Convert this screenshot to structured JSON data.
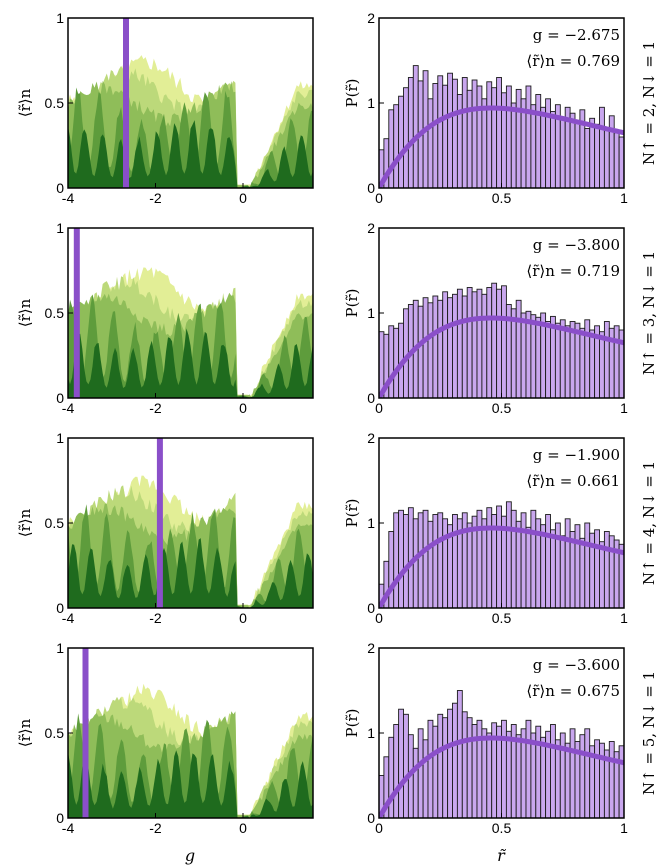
{
  "figure": {
    "x_axis_label_left": "g",
    "x_axis_label_right": "r̃"
  },
  "colors": {
    "frame": "#000000",
    "marker_line": "#8a4fc9",
    "histogram_fill": "#c9a7ee",
    "histogram_edge": "#1a1a1a",
    "reference_curve": "#8a4fc9",
    "layer_1": "#e2ee96",
    "layer_2": "#bcd97a",
    "layer_3": "#8fbd59",
    "layer_4": "#5e9c3c",
    "layer_5": "#1f6b1e"
  },
  "chart_data": [
    {
      "type": "area",
      "panel": "row1-left",
      "ylabel": "⟨r̃⟩n",
      "xlim": [
        -4,
        1.6
      ],
      "ylim": [
        0,
        1
      ],
      "xticks": [
        "-4",
        "-2",
        "0"
      ],
      "yticks": [
        "0",
        "0.5",
        "1"
      ],
      "marker_g": -2.675
    },
    {
      "type": "bar",
      "panel": "row1-right",
      "ylabel": "P(r̃)",
      "xlim": [
        0,
        1
      ],
      "ylim": [
        0,
        2
      ],
      "xticks": [
        "0",
        "0.5",
        "1"
      ],
      "yticks": [
        "0",
        "1",
        "2"
      ],
      "g_text": "g = −2.675",
      "r_text": "⟨r̃⟩n = 0.769",
      "side_label": "N↑ = 2, N↓ = 1",
      "values": [
        0.45,
        0.58,
        0.92,
        0.98,
        1.08,
        1.18,
        1.3,
        1.44,
        1.26,
        1.38,
        1.05,
        1.23,
        1.32,
        1.21,
        1.35,
        1.28,
        1.1,
        1.3,
        1.15,
        1.27,
        1.2,
        1.05,
        1.25,
        1.18,
        1.3,
        1.12,
        1.2,
        1.0,
        1.16,
        1.05,
        1.2,
        0.98,
        1.1,
        0.95,
        1.05,
        0.9,
        0.98,
        0.82,
        0.95,
        0.88,
        0.78,
        0.92,
        0.7,
        0.82,
        0.75,
        0.95,
        0.68,
        0.85,
        0.65,
        0.6
      ]
    },
    {
      "type": "area",
      "panel": "row2-left",
      "ylabel": "⟨r̃⟩n",
      "xlim": [
        -4,
        1.6
      ],
      "ylim": [
        0,
        1
      ],
      "xticks": [
        "-4",
        "-2",
        "0"
      ],
      "yticks": [
        "0",
        "0.5",
        "1"
      ],
      "marker_g": -3.8
    },
    {
      "type": "bar",
      "panel": "row2-right",
      "ylabel": "P(r̃)",
      "xlim": [
        0,
        1
      ],
      "ylim": [
        0,
        2
      ],
      "xticks": [
        "0",
        "0.5",
        "1"
      ],
      "yticks": [
        "0",
        "1",
        "2"
      ],
      "g_text": "g = −3.800",
      "r_text": "⟨r̃⟩n = 0.719",
      "side_label": "N↑ = 3, N↓ = 1",
      "values": [
        0.78,
        0.75,
        0.85,
        0.82,
        0.88,
        1.05,
        1.1,
        1.15,
        1.08,
        1.18,
        1.12,
        1.2,
        1.15,
        1.25,
        1.18,
        1.22,
        1.28,
        1.2,
        1.3,
        1.25,
        1.28,
        1.22,
        1.3,
        1.35,
        1.28,
        1.32,
        1.1,
        1.05,
        1.15,
        1.0,
        1.02,
        0.98,
        0.95,
        1.0,
        0.9,
        0.96,
        0.88,
        0.92,
        0.85,
        0.9,
        0.88,
        0.82,
        0.92,
        0.8,
        0.85,
        0.78,
        0.9,
        0.82,
        0.85,
        0.8
      ]
    },
    {
      "type": "area",
      "panel": "row3-left",
      "ylabel": "⟨r̃⟩n",
      "xlim": [
        -4,
        1.6
      ],
      "ylim": [
        0,
        1
      ],
      "xticks": [
        "-4",
        "-2",
        "0"
      ],
      "yticks": [
        "0",
        "0.5",
        "1"
      ],
      "marker_g": -1.9
    },
    {
      "type": "bar",
      "panel": "row3-right",
      "ylabel": "P(r̃)",
      "xlim": [
        0,
        1
      ],
      "ylim": [
        0,
        2
      ],
      "xticks": [
        "0",
        "0.5",
        "1"
      ],
      "yticks": [
        "0",
        "1",
        "2"
      ],
      "g_text": "g = −1.900",
      "r_text": "⟨r̃⟩n = 0.661",
      "side_label": "N↑ = 4, N↓ = 1",
      "values": [
        0.28,
        0.55,
        0.9,
        1.12,
        1.15,
        1.1,
        1.18,
        1.05,
        1.12,
        1.15,
        1.02,
        1.1,
        1.12,
        1.05,
        0.98,
        1.1,
        1.05,
        1.12,
        1.0,
        1.08,
        1.15,
        1.05,
        1.18,
        1.1,
        1.2,
        1.08,
        1.25,
        1.15,
        1.02,
        1.12,
        0.95,
        1.15,
        1.05,
        0.98,
        1.1,
        0.92,
        1.0,
        0.85,
        1.05,
        0.9,
        0.98,
        0.82,
        1.0,
        0.88,
        0.92,
        0.78,
        0.9,
        0.85,
        0.8,
        0.75
      ]
    },
    {
      "type": "area",
      "panel": "row4-left",
      "ylabel": "⟨r̃⟩n",
      "xlim": [
        -4,
        1.6
      ],
      "ylim": [
        0,
        1
      ],
      "xticks": [
        "-4",
        "-2",
        "0"
      ],
      "yticks": [
        "0",
        "0.5",
        "1"
      ],
      "marker_g": -3.6
    },
    {
      "type": "bar",
      "panel": "row4-right",
      "ylabel": "P(r̃)",
      "xlim": [
        0,
        1
      ],
      "ylim": [
        0,
        2
      ],
      "xticks": [
        "0",
        "0.5",
        "1"
      ],
      "yticks": [
        "0",
        "1",
        "2"
      ],
      "g_text": "g = −3.600",
      "r_text": "⟨r̃⟩n = 0.675",
      "side_label": "N↑ = 5, N↓ = 1",
      "values": [
        0.5,
        0.72,
        0.95,
        1.1,
        1.28,
        1.22,
        0.98,
        0.82,
        1.05,
        0.92,
        1.15,
        1.08,
        1.22,
        1.18,
        1.28,
        1.35,
        1.5,
        1.25,
        1.18,
        1.1,
        1.15,
        1.05,
        1.0,
        1.12,
        1.08,
        1.15,
        1.02,
        1.1,
        0.98,
        1.05,
        1.15,
        1.0,
        1.08,
        0.95,
        1.02,
        1.1,
        0.92,
        1.0,
        0.88,
        1.05,
        0.9,
        0.98,
        1.05,
        0.85,
        0.92,
        0.88,
        0.8,
        0.9,
        0.78,
        0.85
      ]
    }
  ]
}
